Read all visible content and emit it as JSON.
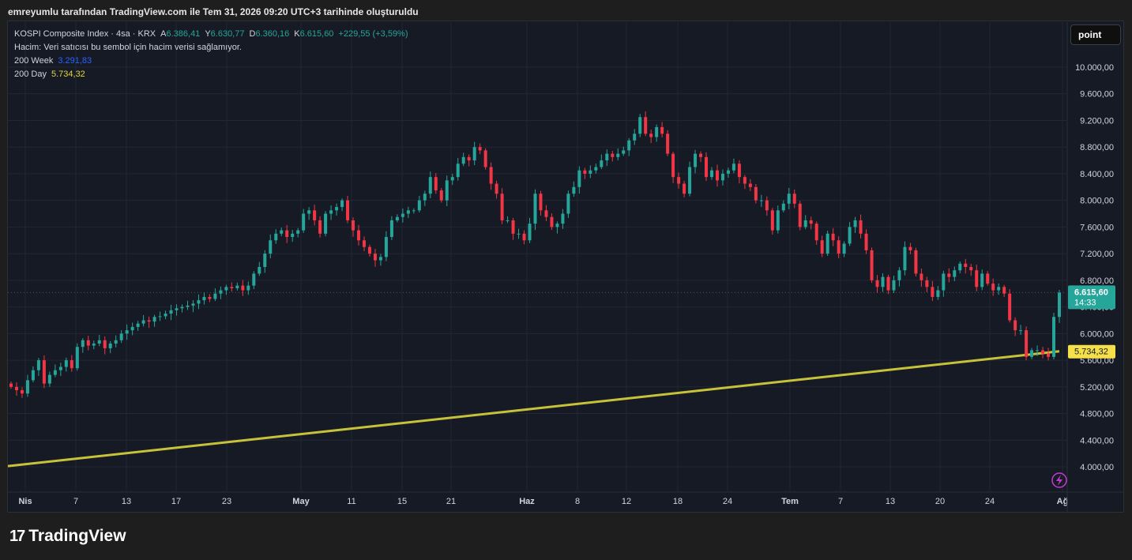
{
  "caption": "emreyumlu tarafından TradingView.com ile Tem 31, 2026 09:20 UTC+3 tarihinde oluşturuldu",
  "legend": {
    "symbol": "KOSPI Composite Index · 4sa · KRX",
    "o_label": "A",
    "o_value": "6.386,41",
    "h_label": "Y",
    "h_value": "6.630,77",
    "l_label": "D",
    "l_value": "6.360,16",
    "c_label": "K",
    "c_value": "6.615,60",
    "change": "+229,55 (+3,59%)",
    "volume_line": "Hacim: Veri satıcısı bu sembol için hacim verisi sağlamıyor.",
    "ma_week_label": "200 Week",
    "ma_week_value": "3.291,83",
    "ma_day_label": "200 Day",
    "ma_day_value": "5.734,32"
  },
  "point_button": "point",
  "footer": {
    "brand": "TradingView",
    "brand_mark": "17"
  },
  "colors": {
    "up": "#26a69a",
    "down": "#f23645",
    "ma": "#c8c13a",
    "bg": "#161a25",
    "grid": "#232734",
    "axis_text": "#d1d4dc"
  },
  "chart_data": {
    "type": "candlestick",
    "y_ticks": [
      "4.000,00",
      "4.400,00",
      "4.800,00",
      "5.200,00",
      "5.600,00",
      "6.000,00",
      "6.400,00",
      "6.800,00",
      "7.200,00",
      "7.600,00",
      "8.000,00",
      "8.400,00",
      "8.800,00",
      "9.200,00",
      "9.600,00",
      "10.000,00"
    ],
    "y_tick_values": [
      4000,
      4400,
      4800,
      5200,
      5600,
      6000,
      6400,
      6800,
      7200,
      7600,
      8000,
      8400,
      8800,
      9200,
      9600,
      10000
    ],
    "ylim": [
      3850,
      10400
    ],
    "x_labels": [
      "Nis",
      "7",
      "13",
      "17",
      "23",
      "May",
      "11",
      "15",
      "21",
      "Haz",
      "8",
      "12",
      "18",
      "24",
      "Tem",
      "7",
      "13",
      "20",
      "24",
      "Ağ"
    ],
    "x_label_bold": [
      "Nis",
      "May",
      "Haz",
      "Tem",
      "Ağ"
    ],
    "last_price_label": "6.615,60",
    "last_price": 6615.6,
    "countdown": "14:33",
    "ma_price_label": "5.734,32",
    "ma_200_day": {
      "start": 4010,
      "end": 5734.32
    },
    "candles_close": [
      5200,
      5150,
      5100,
      5300,
      5450,
      5600,
      5250,
      5380,
      5450,
      5500,
      5600,
      5480,
      5800,
      5900,
      5820,
      5850,
      5900,
      5780,
      5850,
      5900,
      6000,
      6050,
      6100,
      6150,
      6200,
      6180,
      6250,
      6260,
      6300,
      6350,
      6380,
      6400,
      6420,
      6450,
      6500,
      6550,
      6520,
      6600,
      6650,
      6700,
      6680,
      6720,
      6650,
      6720,
      6900,
      7000,
      7200,
      7400,
      7500,
      7550,
      7450,
      7500,
      7550,
      7800,
      7850,
      7700,
      7500,
      7800,
      7850,
      7900,
      8000,
      7700,
      7550,
      7400,
      7300,
      7200,
      7100,
      7150,
      7450,
      7700,
      7750,
      7800,
      7850,
      7850,
      8000,
      8100,
      8350,
      8150,
      8000,
      8300,
      8350,
      8550,
      8650,
      8600,
      8800,
      8750,
      8500,
      8250,
      8100,
      7700,
      7700,
      7500,
      7500,
      7400,
      7650,
      8100,
      7850,
      7750,
      7600,
      7650,
      7800,
      8100,
      8200,
      8450,
      8400,
      8450,
      8500,
      8600,
      8700,
      8650,
      8700,
      8750,
      8900,
      9000,
      9250,
      9000,
      8950,
      9100,
      9000,
      8700,
      8350,
      8250,
      8100,
      8500,
      8700,
      8650,
      8350,
      8450,
      8300,
      8400,
      8450,
      8550,
      8350,
      8250,
      8200,
      8000,
      8000,
      7850,
      7550,
      7850,
      7950,
      8100,
      7950,
      7600,
      7700,
      7650,
      7400,
      7200,
      7500,
      7400,
      7200,
      7350,
      7600,
      7700,
      7500,
      7250,
      6800,
      6700,
      6850,
      6650,
      6800,
      6950,
      7300,
      7250,
      6900,
      6800,
      6700,
      6550,
      6650,
      6900,
      6850,
      6950,
      7050,
      7000,
      6950,
      6700,
      6900,
      6750,
      6650,
      6700,
      6600,
      6200,
      6050,
      6050,
      5650,
      5750,
      5750,
      5700,
      5650,
      6250,
      6615.6
    ]
  }
}
